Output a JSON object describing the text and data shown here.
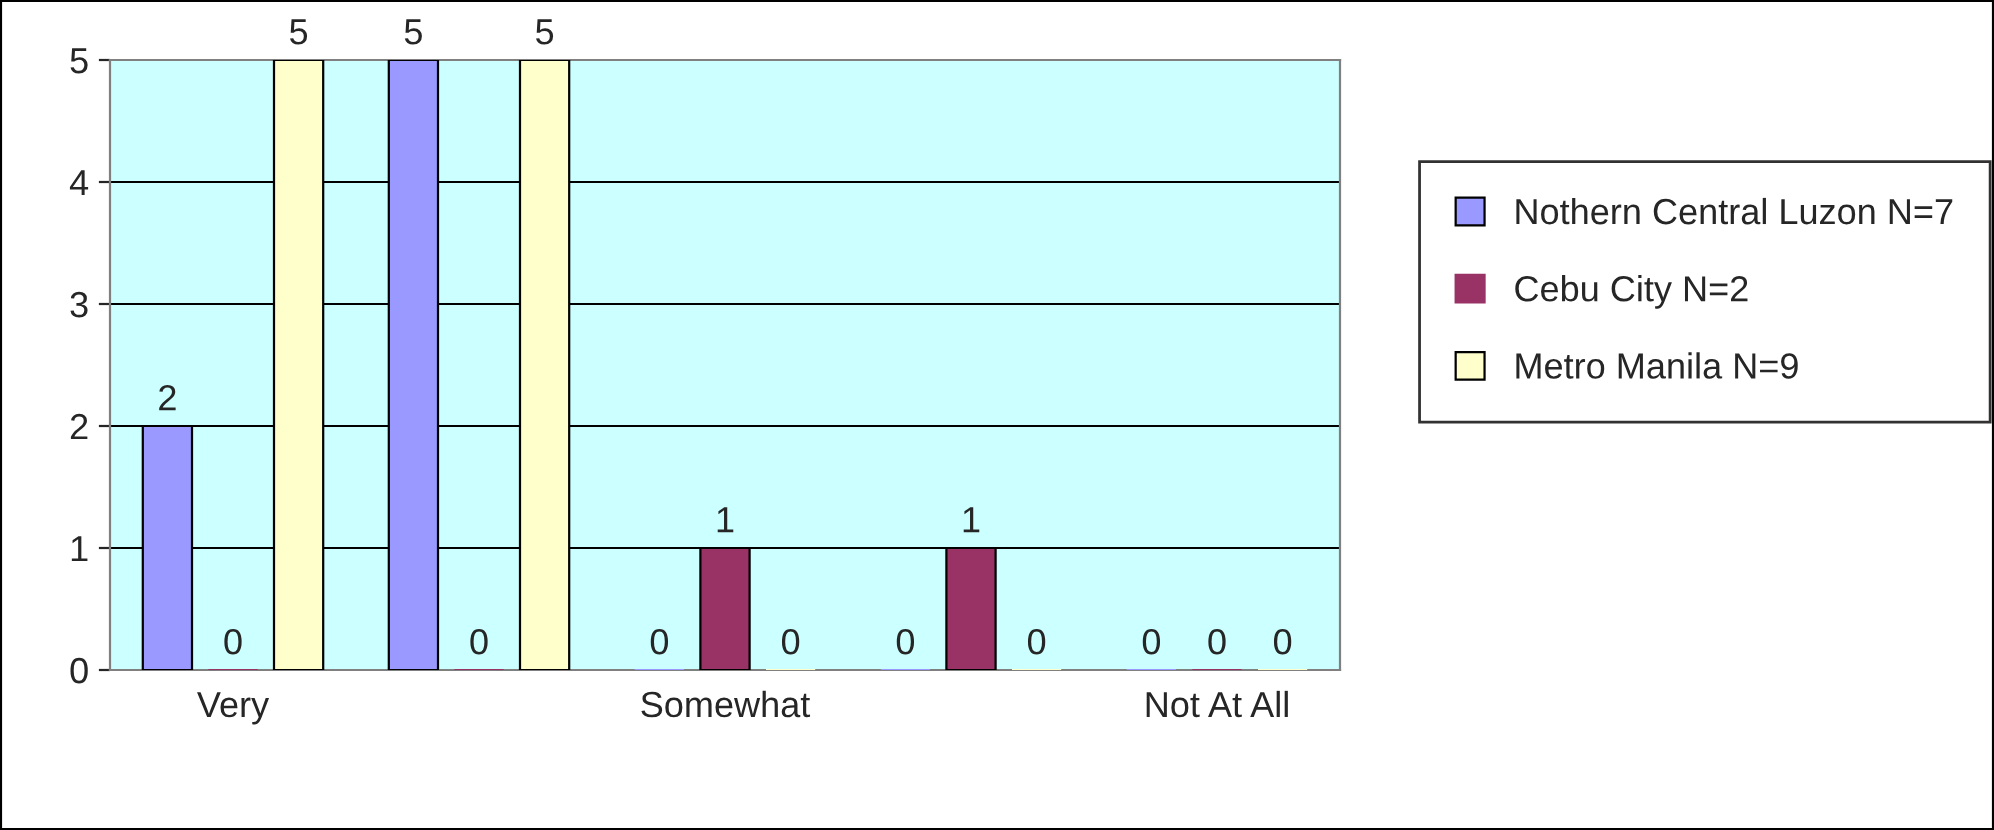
{
  "chart_data": {
    "type": "bar",
    "categories": [
      "Very",
      null,
      "Somewhat",
      null,
      "Not At All"
    ],
    "series": [
      {
        "name": "Nothern Central Luzon N=7",
        "color": "#9999ff",
        "values": [
          2,
          5,
          0,
          0,
          0
        ]
      },
      {
        "name": "Cebu City N=2",
        "color": "#993366",
        "values": [
          0,
          0,
          1,
          1,
          0
        ]
      },
      {
        "name": "Metro Manila N=9",
        "color": "#ffffcc",
        "values": [
          5,
          5,
          0,
          0,
          0
        ]
      }
    ],
    "ylim": [
      0,
      5
    ],
    "yticks": [
      0,
      1,
      2,
      3,
      4,
      5
    ],
    "grid": "y",
    "legend": "right",
    "data_labels": true
  }
}
